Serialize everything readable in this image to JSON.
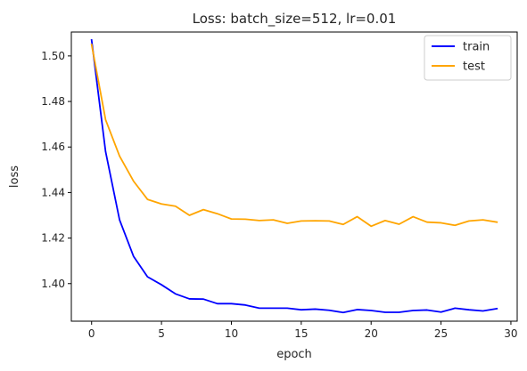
{
  "chart_data": {
    "type": "line",
    "title": "Loss: batch_size=512, lr=0.01",
    "xlabel": "epoch",
    "ylabel": "loss",
    "xlim": [
      -1.45,
      30.45
    ],
    "ylim": [
      1.3835,
      1.5105
    ],
    "xticks": [
      0,
      5,
      10,
      15,
      20,
      25,
      30
    ],
    "xtick_labels": [
      "0",
      "5",
      "10",
      "15",
      "20",
      "25",
      "30"
    ],
    "yticks": [
      1.4,
      1.42,
      1.44,
      1.46,
      1.48,
      1.5
    ],
    "ytick_labels": [
      "1.40",
      "1.42",
      "1.44",
      "1.46",
      "1.48",
      "1.50"
    ],
    "grid": false,
    "legend": "top-right",
    "x": [
      0,
      1,
      2,
      3,
      4,
      5,
      6,
      7,
      8,
      9,
      10,
      11,
      12,
      13,
      14,
      15,
      16,
      17,
      18,
      19,
      20,
      21,
      22,
      23,
      24,
      25,
      26,
      27,
      28,
      29
    ],
    "series": [
      {
        "name": "train",
        "color": "#0000ff",
        "values": [
          1.507,
          1.458,
          1.428,
          1.412,
          1.403,
          1.3995,
          1.3955,
          1.3933,
          1.3932,
          1.3912,
          1.3912,
          1.3906,
          1.3892,
          1.3892,
          1.3892,
          1.3885,
          1.3888,
          1.3883,
          1.3873,
          1.3886,
          1.3882,
          1.3874,
          1.3874,
          1.3882,
          1.3884,
          1.3875,
          1.3892,
          1.3885,
          1.388,
          1.389
        ]
      },
      {
        "name": "test",
        "color": "#ffa500",
        "values": [
          1.505,
          1.472,
          1.456,
          1.445,
          1.437,
          1.435,
          1.434,
          1.43,
          1.4325,
          1.4307,
          1.4284,
          1.4283,
          1.4277,
          1.428,
          1.4265,
          1.4275,
          1.4276,
          1.4275,
          1.426,
          1.4294,
          1.4252,
          1.4277,
          1.4261,
          1.4294,
          1.427,
          1.4267,
          1.4256,
          1.4275,
          1.428,
          1.427
        ]
      }
    ]
  }
}
